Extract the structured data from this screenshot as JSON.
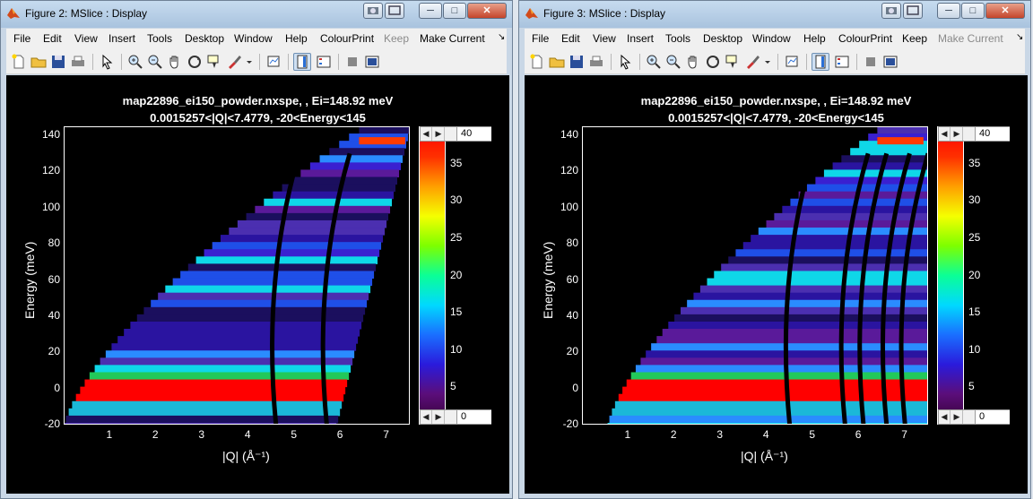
{
  "windows": [
    {
      "title": "Figure 2: MSlice : Display",
      "menu": [
        "File",
        "Edit",
        "View",
        "Insert",
        "Tools",
        "Desktop",
        "Window",
        "Help",
        "ColourPrint",
        "Keep",
        "Make Current"
      ],
      "menu_disabled": [
        "Keep"
      ],
      "title_line1": "map22896_ei150_powder.nxspe, , Ei=148.92 meV",
      "title_line2": "0.0015257<|Q|<7.4779,  -20<Energy<145",
      "ylabel": "Energy (meV)",
      "xlabel": "|Q| (Å⁻¹)",
      "colorbar_max": "40",
      "colorbar_min": "0"
    },
    {
      "title": "Figure 3: MSlice : Display",
      "menu": [
        "File",
        "Edit",
        "View",
        "Insert",
        "Tools",
        "Desktop",
        "Window",
        "Help",
        "ColourPrint",
        "Keep",
        "Make Current"
      ],
      "menu_disabled": [
        "Make Current"
      ],
      "title_line1": "map22896_ei150_powder.nxspe, , Ei=148.92 meV",
      "title_line2": "0.0015257<|Q|<7.4779,  -20<Energy<145",
      "ylabel": "Energy (meV)",
      "xlabel": "|Q| (Å⁻¹)",
      "colorbar_max": "40",
      "colorbar_min": "0"
    }
  ],
  "chart_data": [
    {
      "type": "heatmap",
      "title": "map22896_ei150_powder.nxspe, , Ei=148.92 meV",
      "subtitle": "0.0015257<|Q|<7.4779,  -20<Energy<145",
      "xlabel": "|Q| (Å⁻¹)",
      "ylabel": "Energy (meV)",
      "xlim": [
        0,
        7.5
      ],
      "ylim": [
        -20,
        145
      ],
      "xticks": [
        1,
        2,
        3,
        4,
        5,
        6,
        7
      ],
      "yticks": [
        -20,
        0,
        20,
        40,
        60,
        80,
        100,
        120,
        140
      ],
      "colorbar": {
        "min": 0,
        "max": 40,
        "ticks": [
          0,
          5,
          10,
          15,
          20,
          25,
          30,
          35,
          40
        ]
      },
      "kinematic_q_min_at_emin": 0.0,
      "kinematic_q_max_at_emin": 5.9,
      "elastic_band_energy": [
        -6,
        6
      ],
      "dark_arcs_q_at_zero": [
        4.6,
        5.7
      ],
      "grid": false
    },
    {
      "type": "heatmap",
      "title": "map22896_ei150_powder.nxspe, , Ei=148.92 meV",
      "subtitle": "0.0015257<|Q|<7.4779,  -20<Energy<145",
      "xlabel": "|Q| (Å⁻¹)",
      "ylabel": "Energy (meV)",
      "xlim": [
        0,
        7.5
      ],
      "ylim": [
        -20,
        145
      ],
      "xticks": [
        1,
        2,
        3,
        4,
        5,
        6,
        7
      ],
      "yticks": [
        -20,
        0,
        20,
        40,
        60,
        80,
        100,
        120,
        140
      ],
      "colorbar": {
        "min": 0,
        "max": 40,
        "ticks": [
          0,
          5,
          10,
          15,
          20,
          25,
          30,
          35,
          40
        ]
      },
      "kinematic_q_min_at_emin": 0.55,
      "kinematic_q_max_at_emin": 7.5,
      "elastic_band_energy": [
        -6,
        6
      ],
      "dark_arcs_q_at_zero": [
        4.5,
        5.7,
        6.1,
        6.6,
        7.0
      ],
      "grid": false
    }
  ],
  "colors": {
    "background": "#000000",
    "window_frame": "#c9d7e6",
    "accent": "#ff0000"
  }
}
